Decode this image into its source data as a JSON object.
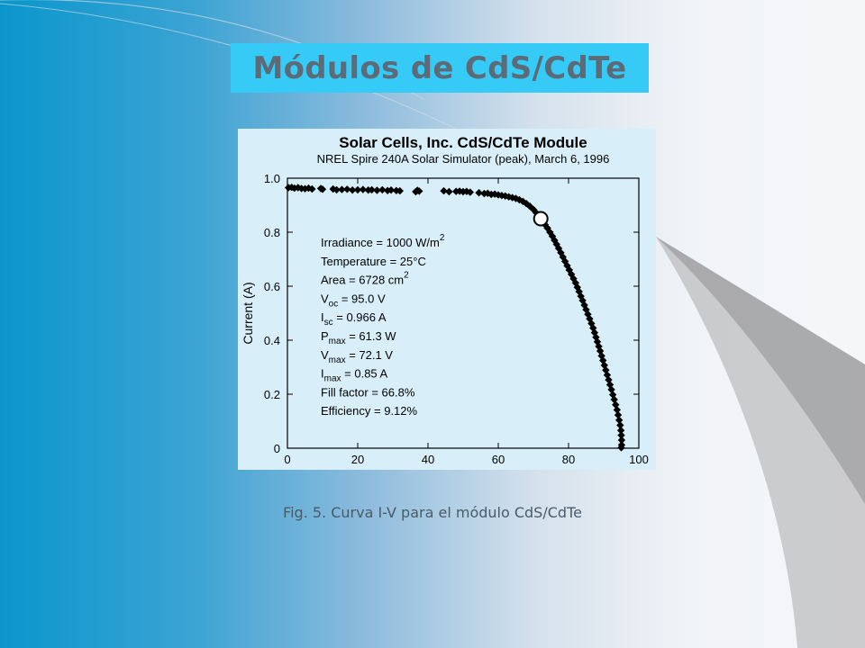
{
  "slide": {
    "title": "Módulos de CdS/CdTe",
    "caption": "Fig. 5. Curva I-V para el módulo CdS/CdTe",
    "colors": {
      "title_box": "#35cbf6",
      "title_text": "#5d6b78",
      "chart_bg": "#d8eff9",
      "gradient_left": "#0a96cc",
      "gradient_right": "#f5f6f8"
    }
  },
  "chart_data": {
    "type": "scatter",
    "title": "Solar Cells, Inc. CdS/CdTe Module",
    "subtitle": "NREL Spire 240A Solar Simulator (peak), March 6, 1996",
    "xlabel": "",
    "ylabel": "Current (A)",
    "xlim": [
      0,
      100
    ],
    "ylim": [
      0,
      1.0
    ],
    "xticks": [
      0,
      20,
      40,
      60,
      80,
      100
    ],
    "yticks": [
      0,
      0.2,
      0.4,
      0.6,
      0.8,
      1.0
    ],
    "ytick_labels": [
      "0",
      "0.2",
      "0.4",
      "0.6",
      "0.8",
      "1.0"
    ],
    "grid": false,
    "marker": "diamond",
    "annotations": [
      {
        "main": "Irradiance = 1000 W/m",
        "sup": "2"
      },
      {
        "main": "Temperature = 25°C"
      },
      {
        "main": "Area = 6728 cm",
        "sup": "2"
      },
      {
        "main": "V",
        "sub": "oc",
        "rest": " = 95.0 V"
      },
      {
        "main": "I",
        "sub": "sc",
        "rest": " = 0.966 A"
      },
      {
        "main": "P",
        "sub": "max",
        "rest": " = 61.3 W"
      },
      {
        "main": "V",
        "sub": "max",
        "rest": " = 72.1 V"
      },
      {
        "main": "I",
        "sub": "max",
        "rest": " = 0.85 A"
      },
      {
        "main": "Fill factor = 66.8%"
      },
      {
        "main": "Efficiency = 9.12%"
      }
    ],
    "max_power_point": {
      "x": 72.1,
      "y": 0.85
    },
    "points": [
      [
        0.3,
        0.965
      ],
      [
        1.2,
        0.966
      ],
      [
        2.0,
        0.963
      ],
      [
        3.0,
        0.965
      ],
      [
        4.0,
        0.962
      ],
      [
        5.0,
        0.961
      ],
      [
        6.0,
        0.963
      ],
      [
        7.0,
        0.96
      ],
      [
        9.5,
        0.962
      ],
      [
        10.0,
        0.959
      ],
      [
        13.0,
        0.96
      ],
      [
        14.0,
        0.957
      ],
      [
        15.5,
        0.958
      ],
      [
        17.0,
        0.959
      ],
      [
        18.5,
        0.956
      ],
      [
        20.0,
        0.957
      ],
      [
        21.5,
        0.958
      ],
      [
        23.0,
        0.956
      ],
      [
        24.0,
        0.957
      ],
      [
        25.5,
        0.955
      ],
      [
        27.0,
        0.957
      ],
      [
        28.5,
        0.954
      ],
      [
        29.5,
        0.956
      ],
      [
        31.0,
        0.954
      ],
      [
        32.0,
        0.953
      ],
      [
        36.5,
        0.95
      ],
      [
        37.0,
        0.955
      ],
      [
        37.5,
        0.952
      ],
      [
        44.5,
        0.953
      ],
      [
        46.0,
        0.95
      ],
      [
        48.0,
        0.951
      ],
      [
        49.0,
        0.952
      ],
      [
        50.0,
        0.95
      ],
      [
        51.0,
        0.951
      ],
      [
        52.0,
        0.948
      ],
      [
        54.5,
        0.946
      ],
      [
        56.0,
        0.943
      ],
      [
        57.0,
        0.944
      ],
      [
        58.0,
        0.94
      ],
      [
        59.0,
        0.941
      ],
      [
        60.0,
        0.938
      ],
      [
        61.0,
        0.936
      ],
      [
        62.0,
        0.934
      ],
      [
        63.0,
        0.931
      ],
      [
        64.0,
        0.928
      ],
      [
        65.0,
        0.925
      ],
      [
        66.0,
        0.92
      ],
      [
        67.0,
        0.914
      ],
      [
        68.0,
        0.906
      ],
      [
        69.0,
        0.896
      ],
      [
        70.0,
        0.884
      ],
      [
        70.8,
        0.872
      ],
      [
        71.5,
        0.86
      ],
      [
        72.6,
        0.84
      ],
      [
        73.3,
        0.828
      ],
      [
        74.0,
        0.815
      ],
      [
        74.7,
        0.8
      ],
      [
        75.4,
        0.785
      ],
      [
        76.0,
        0.77
      ],
      [
        76.6,
        0.755
      ],
      [
        77.2,
        0.74
      ],
      [
        77.8,
        0.724
      ],
      [
        78.4,
        0.708
      ],
      [
        79.0,
        0.692
      ],
      [
        79.6,
        0.676
      ],
      [
        80.2,
        0.66
      ],
      [
        80.8,
        0.644
      ],
      [
        81.4,
        0.628
      ],
      [
        82.0,
        0.612
      ],
      [
        82.5,
        0.596
      ],
      [
        83.0,
        0.58
      ],
      [
        83.5,
        0.563
      ],
      [
        84.0,
        0.547
      ],
      [
        84.5,
        0.53
      ],
      [
        85.0,
        0.513
      ],
      [
        85.5,
        0.496
      ],
      [
        86.0,
        0.479
      ],
      [
        86.5,
        0.462
      ],
      [
        87.0,
        0.445
      ],
      [
        87.4,
        0.428
      ],
      [
        87.8,
        0.411
      ],
      [
        88.2,
        0.394
      ],
      [
        88.6,
        0.377
      ],
      [
        89.0,
        0.36
      ],
      [
        89.4,
        0.342
      ],
      [
        89.8,
        0.325
      ],
      [
        90.2,
        0.307
      ],
      [
        90.6,
        0.289
      ],
      [
        91.0,
        0.271
      ],
      [
        91.4,
        0.253
      ],
      [
        91.8,
        0.235
      ],
      [
        92.2,
        0.217
      ],
      [
        92.6,
        0.198
      ],
      [
        93.0,
        0.18
      ],
      [
        93.4,
        0.161
      ],
      [
        93.8,
        0.142
      ],
      [
        94.1,
        0.123
      ],
      [
        94.4,
        0.104
      ],
      [
        94.7,
        0.085
      ],
      [
        94.9,
        0.066
      ],
      [
        95.0,
        0.048
      ],
      [
        95.1,
        0.03
      ],
      [
        95.1,
        0.012
      ],
      [
        95.0,
        0.002
      ]
    ]
  }
}
